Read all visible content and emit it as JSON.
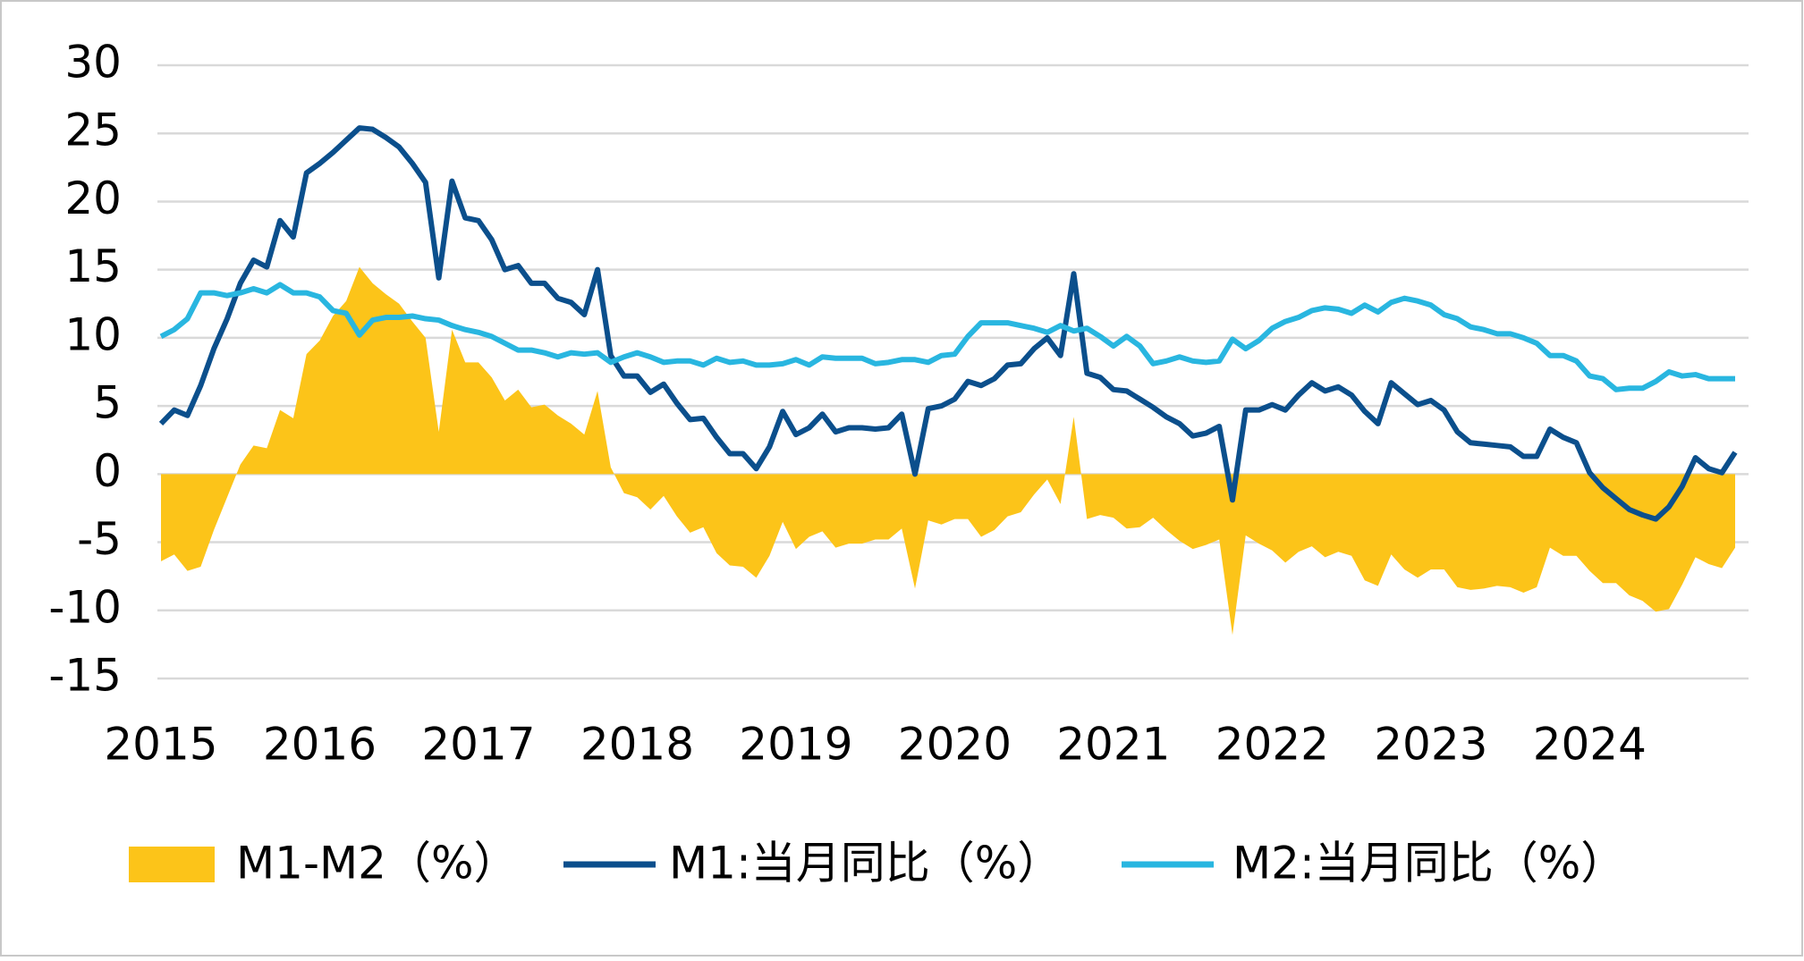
{
  "chart_data": {
    "type": "line",
    "categories": [
      "2015",
      null,
      null,
      null,
      null,
      null,
      null,
      null,
      null,
      null,
      null,
      null,
      "2016",
      null,
      null,
      null,
      null,
      null,
      null,
      null,
      null,
      null,
      null,
      null,
      "2017",
      null,
      null,
      null,
      null,
      null,
      null,
      null,
      null,
      null,
      null,
      null,
      "2018",
      null,
      null,
      null,
      null,
      null,
      null,
      null,
      null,
      null,
      null,
      null,
      "2019",
      null,
      null,
      null,
      null,
      null,
      null,
      null,
      null,
      null,
      null,
      null,
      "2020",
      null,
      null,
      null,
      null,
      null,
      null,
      null,
      null,
      null,
      null,
      null,
      "2021",
      null,
      null,
      null,
      null,
      null,
      null,
      null,
      null,
      null,
      null,
      null,
      "2022",
      null,
      null,
      null,
      null,
      null,
      null,
      null,
      null,
      null,
      null,
      null,
      "2023",
      null,
      null,
      null,
      null,
      null,
      null,
      null,
      null,
      null,
      null,
      null,
      "2024",
      null,
      null,
      null,
      null,
      null,
      null,
      null,
      null,
      null,
      null,
      null
    ],
    "series": [
      {
        "name": "M1-M2（%）",
        "kind": "area",
        "color": "#fcc419",
        "values": [
          -6.4,
          -5.9,
          -7.1,
          -6.8,
          -4.1,
          -1.7,
          0.7,
          2.1,
          1.9,
          4.7,
          4.1,
          8.8,
          9.8,
          11.6,
          12.7,
          15.2,
          14.0,
          13.2,
          12.5,
          11.2,
          10.0,
          3.1,
          10.6,
          8.2,
          8.2,
          7.1,
          5.4,
          6.2,
          4.9,
          5.1,
          4.3,
          3.7,
          2.9,
          6.1,
          0.5,
          -1.4,
          -1.7,
          -2.6,
          -1.6,
          -3.1,
          -4.3,
          -3.9,
          -5.8,
          -6.7,
          -6.8,
          -7.6,
          -6.0,
          -3.5,
          -5.5,
          -4.6,
          -4.2,
          -5.4,
          -5.1,
          -5.1,
          -4.8,
          -4.8,
          -4.0,
          -8.4,
          -3.4,
          -3.7,
          -3.3,
          -3.3,
          -4.6,
          -4.1,
          -3.1,
          -2.8,
          -1.5,
          -0.4,
          -2.2,
          4.2,
          -3.3,
          -3.0,
          -3.2,
          -4.0,
          -3.9,
          -3.2,
          -4.1,
          -4.9,
          -5.5,
          -5.2,
          -4.8,
          -11.8,
          -4.5,
          -5.1,
          -5.6,
          -6.5,
          -5.7,
          -5.3,
          -6.1,
          -5.7,
          -6.0,
          -7.8,
          -8.2,
          -5.9,
          -7.0,
          -7.6,
          -7.0,
          -7.0,
          -8.3,
          -8.5,
          -8.4,
          -8.2,
          -8.3,
          -8.7,
          -8.3,
          -5.4,
          -6.0,
          -6.0,
          -7.1,
          -8.0,
          -8.0,
          -8.9,
          -9.3,
          -10.1,
          -9.9,
          -8.1,
          -6.1,
          -6.6,
          -6.9,
          -5.4
        ]
      },
      {
        "name": "M1:当月同比（%）",
        "kind": "line",
        "color": "#0b4f8c",
        "values": [
          3.7,
          4.7,
          4.3,
          6.5,
          9.2,
          11.4,
          14.0,
          15.7,
          15.2,
          18.6,
          17.4,
          22.1,
          22.8,
          23.6,
          24.5,
          25.4,
          25.3,
          24.7,
          24.0,
          22.8,
          21.4,
          14.4,
          21.5,
          18.8,
          18.6,
          17.2,
          15.0,
          15.3,
          14.0,
          14.0,
          12.9,
          12.6,
          11.7,
          15.0,
          8.7,
          7.2,
          7.2,
          6.0,
          6.6,
          5.2,
          4.0,
          4.1,
          2.7,
          1.5,
          1.5,
          0.4,
          2.0,
          4.6,
          2.9,
          3.4,
          4.4,
          3.1,
          3.4,
          3.4,
          3.3,
          3.4,
          4.4,
          0.0,
          4.8,
          5.0,
          5.5,
          6.8,
          6.5,
          7.0,
          8.0,
          8.1,
          9.2,
          10.0,
          8.7,
          14.7,
          7.4,
          7.1,
          6.2,
          6.1,
          5.5,
          4.9,
          4.2,
          3.7,
          2.8,
          3.0,
          3.5,
          -1.9,
          4.7,
          4.7,
          5.1,
          4.7,
          5.8,
          6.7,
          6.1,
          6.4,
          5.8,
          4.6,
          3.7,
          6.7,
          5.9,
          5.1,
          5.4,
          4.7,
          3.1,
          2.3,
          2.2,
          2.1,
          2.0,
          1.3,
          1.3,
          3.3,
          2.7,
          2.3,
          0.1,
          -1.0,
          -1.8,
          -2.6,
          -3.0,
          -3.3,
          -2.4,
          -0.9,
          1.2,
          0.4,
          0.1,
          1.6
        ]
      },
      {
        "name": "M2:当月同比（%）",
        "kind": "line",
        "color": "#29b6e0",
        "values": [
          10.1,
          10.6,
          11.4,
          13.3,
          13.3,
          13.1,
          13.3,
          13.6,
          13.3,
          13.9,
          13.3,
          13.3,
          13.0,
          12.0,
          11.8,
          10.2,
          11.3,
          11.5,
          11.5,
          11.6,
          11.4,
          11.3,
          10.9,
          10.6,
          10.4,
          10.1,
          9.6,
          9.1,
          9.1,
          8.9,
          8.6,
          8.9,
          8.8,
          8.9,
          8.2,
          8.6,
          8.9,
          8.6,
          8.2,
          8.3,
          8.3,
          8.0,
          8.5,
          8.2,
          8.3,
          8.0,
          8.0,
          8.1,
          8.4,
          8.0,
          8.6,
          8.5,
          8.5,
          8.5,
          8.1,
          8.2,
          8.4,
          8.4,
          8.2,
          8.7,
          8.8,
          10.1,
          11.1,
          11.1,
          11.1,
          10.9,
          10.7,
          10.4,
          10.9,
          10.5,
          10.7,
          10.1,
          9.4,
          10.1,
          9.4,
          8.1,
          8.3,
          8.6,
          8.3,
          8.2,
          8.3,
          9.9,
          9.2,
          9.8,
          10.7,
          11.2,
          11.5,
          12.0,
          12.2,
          12.1,
          11.8,
          12.4,
          11.9,
          12.6,
          12.9,
          12.7,
          12.4,
          11.7,
          11.4,
          10.8,
          10.6,
          10.3,
          10.3,
          10.0,
          9.6,
          8.7,
          8.7,
          8.3,
          7.2,
          7.0,
          6.2,
          6.3,
          6.3,
          6.8,
          7.5,
          7.2,
          7.3,
          7.0,
          7.0,
          7.0
        ]
      }
    ],
    "ylim": [
      -15,
      30
    ],
    "yticks": [
      -15,
      -10,
      -5,
      0,
      5,
      10,
      15,
      20,
      25,
      30
    ],
    "grid": true,
    "legend": "bottom"
  }
}
